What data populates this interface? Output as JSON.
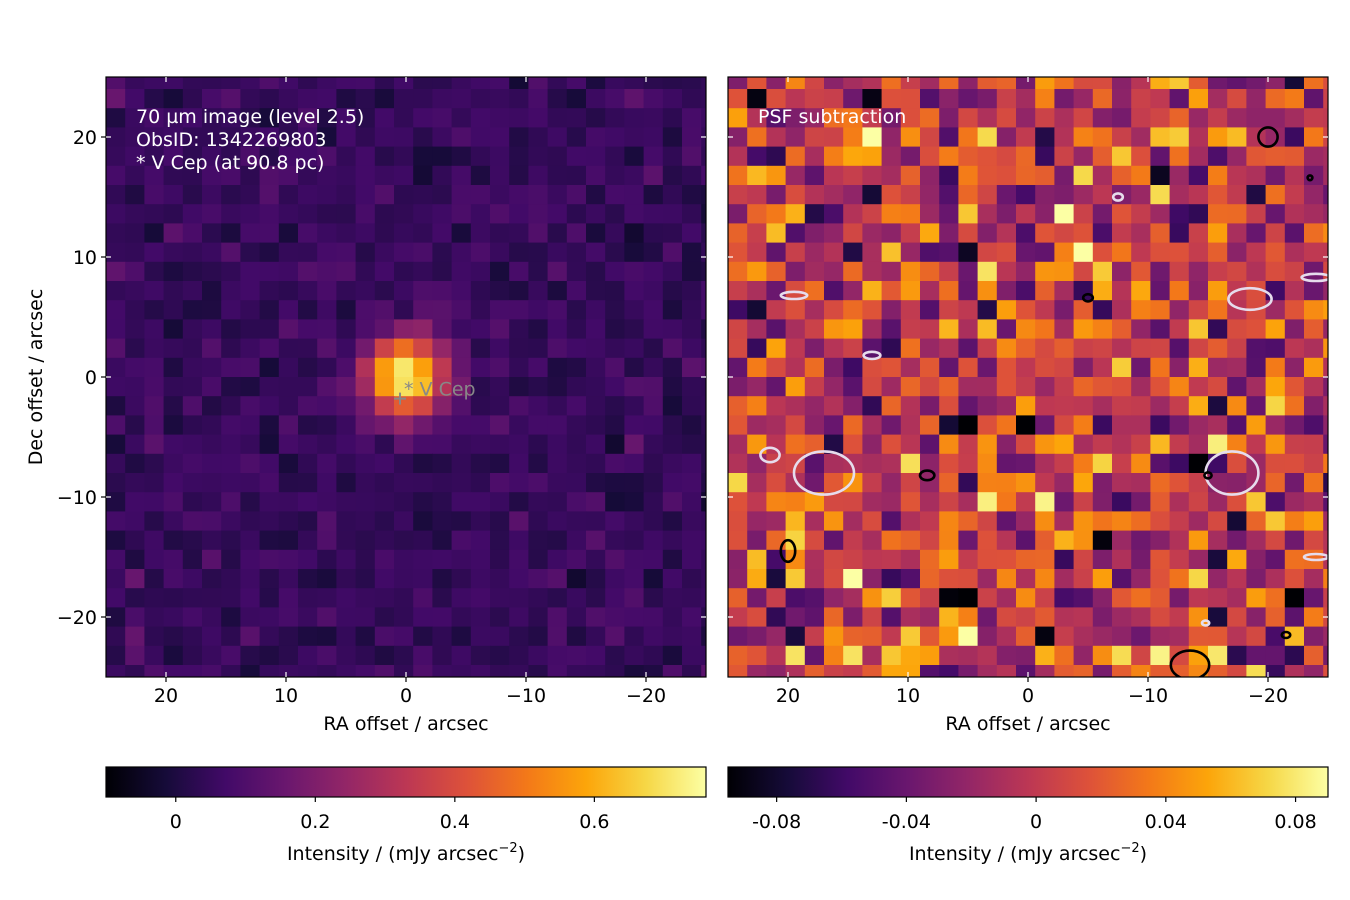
{
  "chart_data": [
    {
      "type": "heatmap",
      "panel": "left",
      "annotation_lines": [
        "70 µm image (level 2.5)",
        "ObsID: 1342269803",
        "* V Cep (at 90.8 pc)"
      ],
      "xlabel": "RA offset / arcsec",
      "ylabel": "Dec offset / arcsec",
      "xlim": [
        25,
        -25
      ],
      "ylim": [
        -25,
        25
      ],
      "xticks": [
        20,
        10,
        0,
        -10,
        -20
      ],
      "xtick_labels": [
        "20",
        "10",
        "0",
        "−10",
        "−20"
      ],
      "yticks": [
        20,
        10,
        0,
        -10,
        -20
      ],
      "ytick_labels": [
        "20",
        "10",
        "0",
        "−10",
        "−20"
      ],
      "pixel_size_arcsec": 1.6,
      "grid": false,
      "colormap": "inferno",
      "star": {
        "label": "* V Cep",
        "ra": 0.5,
        "dec": -1.8
      },
      "source_peak": {
        "ra": 0.0,
        "dec": 0.0,
        "peak_intensity": 0.75,
        "fwhm_arcsec": 5.5
      },
      "background_mean": 0.05,
      "background_noise": 0.03,
      "colorbar": {
        "label": "Intensity / (mJy arcsec",
        "label_sup": "−2",
        "label_end": ")",
        "vmin": -0.1,
        "vmax": 0.76,
        "ticks": [
          0,
          0.2,
          0.4,
          0.6
        ],
        "tick_labels": [
          "0",
          "0.2",
          "0.4",
          "0.6"
        ]
      }
    },
    {
      "type": "heatmap",
      "panel": "right",
      "annotation_lines": [
        "PSF subtraction"
      ],
      "xlabel": "RA offset / arcsec",
      "xlim": [
        25,
        -25
      ],
      "ylim": [
        -25,
        25
      ],
      "xticks": [
        20,
        10,
        0,
        -10,
        -20
      ],
      "xtick_labels": [
        "20",
        "10",
        "0",
        "−10",
        "−20"
      ],
      "pixel_size_arcsec": 1.6,
      "grid": false,
      "colormap": "inferno",
      "residual_noise": 0.035,
      "contours": [
        {
          "color": "#e6dcec",
          "meaning": "negative",
          "levels": "≈ −3σ"
        },
        {
          "color": "#000000",
          "meaning": "positive",
          "levels": "≈ +3σ"
        }
      ],
      "colorbar": {
        "label": "Intensity / (mJy arcsec",
        "label_sup": "−2",
        "label_end": ")",
        "vmin": -0.095,
        "vmax": 0.09,
        "ticks": [
          -0.08,
          -0.04,
          0,
          0.04,
          0.08
        ],
        "tick_labels": [
          "-0.08",
          "-0.04",
          "0",
          "0.04",
          "0.08"
        ]
      }
    }
  ]
}
